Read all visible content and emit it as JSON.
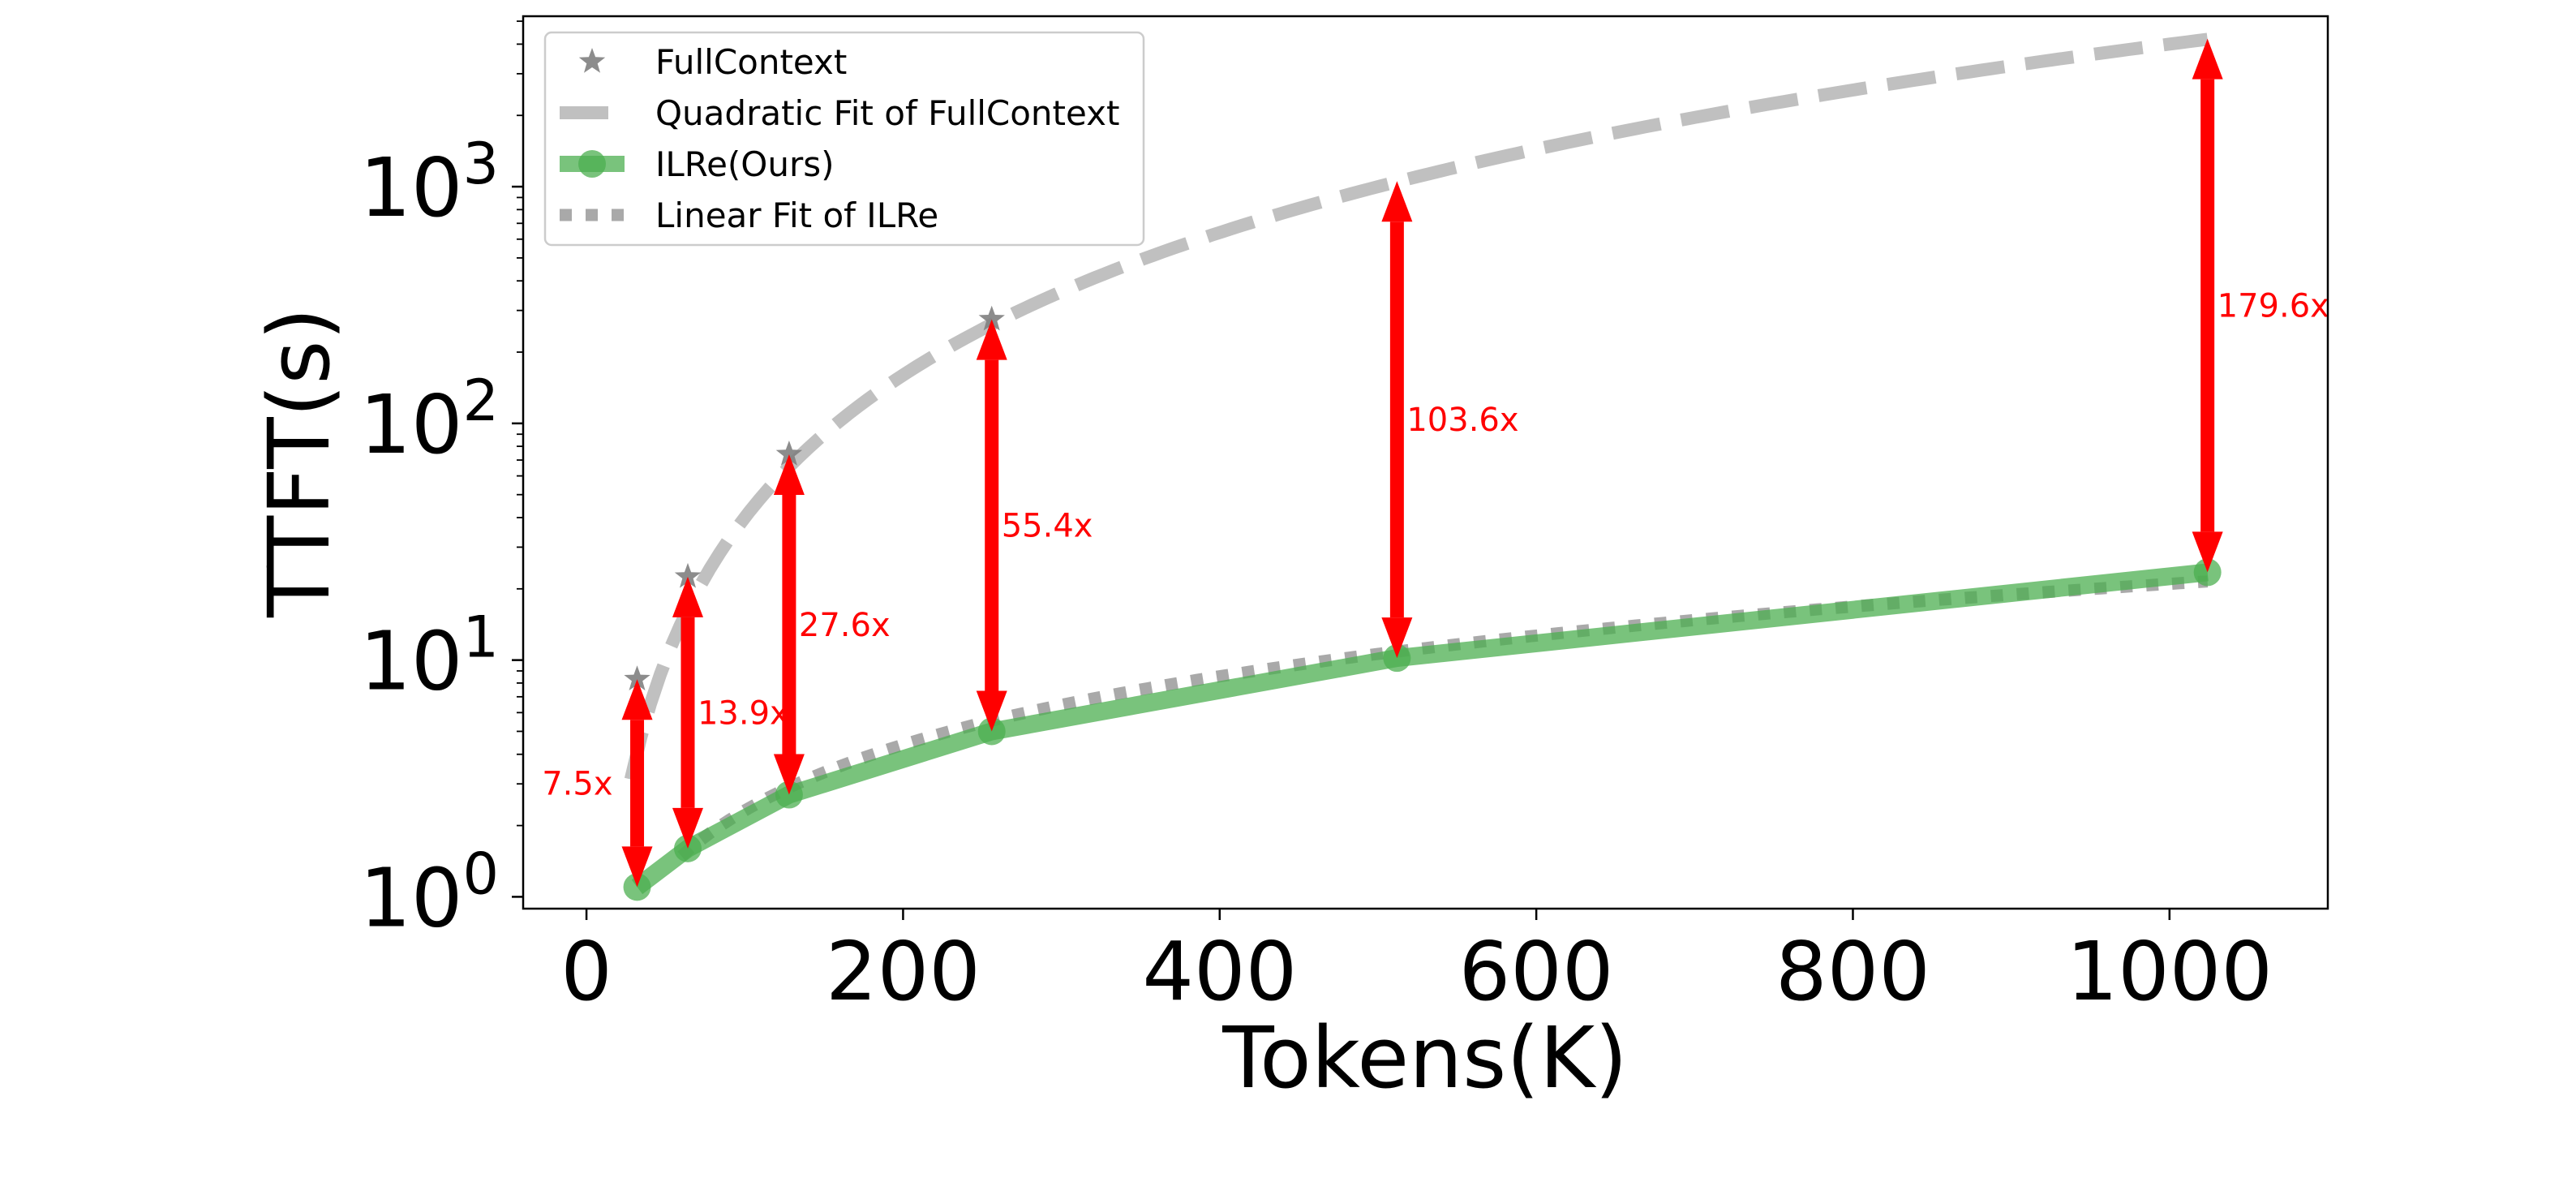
{
  "chart_data": {
    "type": "line",
    "xlabel": "Tokens(K)",
    "ylabel": "TTFT(s)",
    "xlim": [
      -40,
      1100
    ],
    "ylim_log10": [
      -0.05,
      3.72
    ],
    "y_scale": "log",
    "grid": false,
    "legend_placement": "top-left",
    "x_ticks": [
      {
        "value": 0,
        "label": "0"
      },
      {
        "value": 200,
        "label": "200"
      },
      {
        "value": 400,
        "label": "400"
      },
      {
        "value": 600,
        "label": "600"
      },
      {
        "value": 800,
        "label": "800"
      },
      {
        "value": 1000,
        "label": "1000"
      }
    ],
    "y_ticks": [
      {
        "value": 1,
        "base": "10",
        "exp": "0"
      },
      {
        "value": 10,
        "base": "10",
        "exp": "1"
      },
      {
        "value": 100,
        "base": "10",
        "exp": "2"
      },
      {
        "value": 1000,
        "base": "10",
        "exp": "3"
      }
    ],
    "full_context": {
      "name": "FullContext",
      "color": "#808080",
      "points": [
        [
          32,
          8.3
        ],
        [
          64,
          22.5
        ],
        [
          128,
          74
        ],
        [
          256,
          275
        ]
      ]
    },
    "quadratic_fit": {
      "name": "Quadratic Fit of FullContext",
      "color": "#c0c0c0",
      "coef": [
        0.004,
        0.0,
        0.0
      ],
      "x_range": [
        28,
        1024
      ]
    },
    "ilre": {
      "name": "ILRe(Ours)",
      "color": "#4caf50",
      "points": [
        [
          32,
          1.1
        ],
        [
          64,
          1.6
        ],
        [
          128,
          2.7
        ],
        [
          256,
          5.0
        ],
        [
          512,
          10.2
        ],
        [
          1024,
          23.5
        ]
      ]
    },
    "linear_fit": {
      "name": "Linear Fit of ILRe",
      "color": "#a9a9a9",
      "coef": [
        0.02075,
        0.24
      ],
      "x_range": [
        60,
        1024
      ]
    },
    "arrow_color": "#ff0000",
    "arrows": [
      {
        "x": 32,
        "y_low": 1.1,
        "y_high": 8.3,
        "label": "7.5x",
        "label_side": "left"
      },
      {
        "x": 64,
        "y_low": 1.6,
        "y_high": 22.5,
        "label": "13.9x",
        "label_side": "right"
      },
      {
        "x": 128,
        "y_low": 2.7,
        "y_high": 74,
        "label": "27.6x",
        "label_side": "right"
      },
      {
        "x": 256,
        "y_low": 5.0,
        "y_high": 275,
        "label": "55.4x",
        "label_side": "right"
      },
      {
        "x": 512,
        "y_low": 10.2,
        "y_high": 1055,
        "label": "103.6x",
        "label_side": "right"
      },
      {
        "x": 1024,
        "y_low": 23.5,
        "y_high": 4220,
        "label": "179.6x",
        "label_side": "right"
      }
    ]
  }
}
